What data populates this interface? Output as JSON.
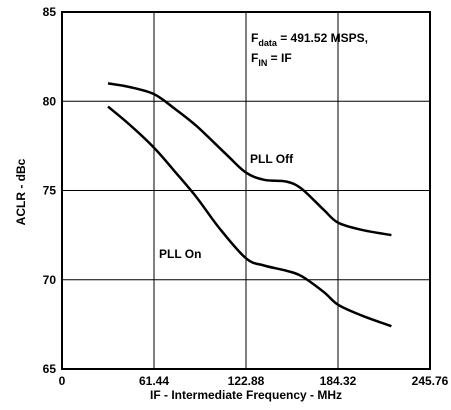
{
  "chart_data": {
    "type": "line",
    "xlabel": "IF - Intermediate Frequency - MHz",
    "ylabel": "ACLR - dBc",
    "xlim": [
      0,
      245.76
    ],
    "ylim": [
      65,
      85
    ],
    "x_ticks": [
      "0",
      "61.44",
      "122.88",
      "184.32",
      "245.76"
    ],
    "y_ticks": [
      "65",
      "70",
      "75",
      "80",
      "85"
    ],
    "grid": true,
    "annotation": {
      "line1_main": "F",
      "line1_sub": "data",
      "line1_rest": " = 491.52 MSPS,",
      "line2_main": "F",
      "line2_sub": "IN",
      "line2_rest": " = IF"
    },
    "series": [
      {
        "name": "PLL Off",
        "x": [
          30.7,
          45,
          61.44,
          75,
          90,
          110,
          122.88,
          135,
          150,
          160,
          175,
          184.32,
          200,
          220
        ],
        "y": [
          81.0,
          80.8,
          80.4,
          79.6,
          78.6,
          77.0,
          76.0,
          75.6,
          75.5,
          75.1,
          73.9,
          73.2,
          72.8,
          72.5
        ]
      },
      {
        "name": "PLL On",
        "x": [
          30.7,
          45,
          61.44,
          75,
          90,
          105,
          122.88,
          135,
          150,
          160,
          175,
          184.32,
          200,
          220
        ],
        "y": [
          79.7,
          78.7,
          77.4,
          76.1,
          74.6,
          72.9,
          71.2,
          70.8,
          70.5,
          70.2,
          69.3,
          68.6,
          68.0,
          67.4
        ]
      }
    ]
  }
}
